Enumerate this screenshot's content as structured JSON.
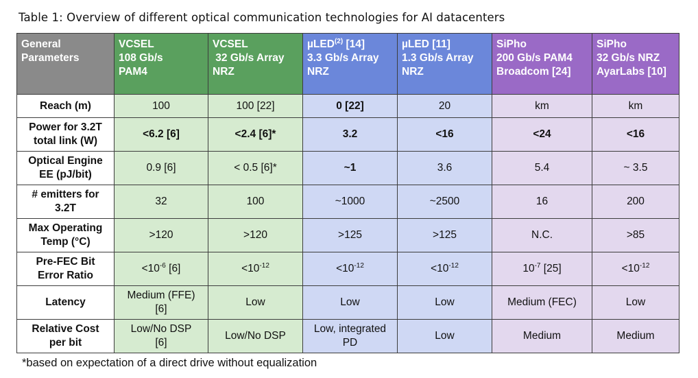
{
  "caption": "Table 1: Overview of different optical communication technologies for AI datacenters",
  "headers": {
    "param": [
      "General",
      "Parameters"
    ],
    "c1": [
      "VCSEL",
      "108 Gb/s",
      "PAM4"
    ],
    "c2": [
      "VCSEL",
      " 32 Gb/s Array",
      "NRZ"
    ],
    "c3": {
      "pre": "µLED",
      "sup": "(2)",
      "post": " [14]",
      "l2": "3.3 Gb/s Array",
      "l3": "NRZ"
    },
    "c4": [
      "µLED [11]",
      "1.3 Gb/s Array",
      "NRZ"
    ],
    "c5": [
      "SiPho",
      "200 Gb/s PAM4",
      "Broadcom [24]"
    ],
    "c6": [
      "SiPho",
      "32 Gb/s NRZ",
      "AyarLabs [10]"
    ]
  },
  "rows": {
    "reach": {
      "label": "Reach (m)",
      "v": [
        "100",
        "100 [22]",
        "0 [22]",
        "20",
        "km",
        "km"
      ]
    },
    "power": {
      "label1": "Power for 3.2T",
      "label2": "total link (W)",
      "v": [
        "<6.2 [6]",
        "<2.4 [6]*",
        "3.2",
        "<16",
        "<24",
        "<16"
      ]
    },
    "engine": {
      "label1": "Optical Engine",
      "label2": "EE (pJ/bit)",
      "v": [
        "0.9 [6]",
        "< 0.5 [6]*",
        "~1",
        "3.6",
        "5.4",
        "~ 3.5"
      ]
    },
    "emitters": {
      "label1": "# emitters for",
      "label2": "3.2T",
      "v": [
        "32",
        "100",
        "~1000",
        "~2500",
        "16",
        "200"
      ]
    },
    "temp": {
      "label1": "Max Operating",
      "label2": "Temp (°C)",
      "v": [
        ">120",
        ">120",
        ">125",
        ">125",
        "N.C.",
        ">85"
      ]
    },
    "ber": {
      "label1": "Pre-FEC Bit",
      "label2": "Error Ratio",
      "v": [
        {
          "base": "<10",
          "exp": "-6",
          "tail": " [6]"
        },
        {
          "base": "<10",
          "exp": "-12",
          "tail": ""
        },
        {
          "base": "<10",
          "exp": "-12",
          "tail": ""
        },
        {
          "base": "<10",
          "exp": "-12",
          "tail": ""
        },
        {
          "base": "10",
          "exp": "-7",
          "tail": " [25]"
        },
        {
          "base": "<10",
          "exp": "-12",
          "tail": ""
        }
      ]
    },
    "latency": {
      "label": "Latency",
      "v": [
        [
          "Medium (FFE)",
          "[6]"
        ],
        [
          "Low"
        ],
        [
          "Low"
        ],
        [
          "Low"
        ],
        [
          "Medium (FEC)"
        ],
        [
          "Low"
        ]
      ]
    },
    "cost": {
      "label1": "Relative Cost",
      "label2": "per bit",
      "v": [
        [
          "Low/No DSP",
          "[6]"
        ],
        [
          "Low/No DSP"
        ],
        [
          "Low, integrated",
          "PD"
        ],
        [
          "Low"
        ],
        [
          "Medium"
        ],
        [
          "Medium"
        ]
      ]
    }
  },
  "footnote": "*based on expectation of a direct drive without equalization"
}
